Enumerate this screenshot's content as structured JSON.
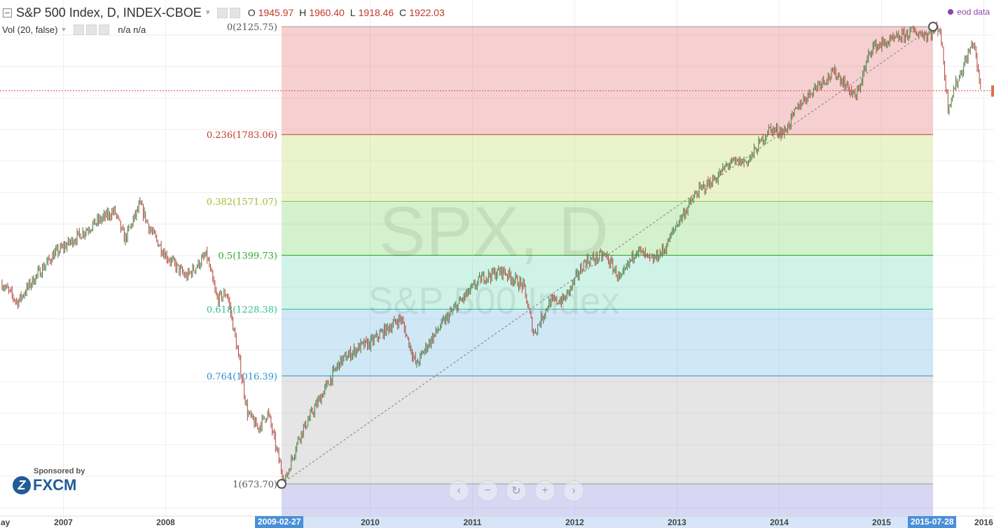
{
  "legend": {
    "title": "S&P 500 Index, D, INDEX-CBOE",
    "ohlc": [
      {
        "key": "O",
        "value": "1945.97"
      },
      {
        "key": "H",
        "value": "1960.40"
      },
      {
        "key": "L",
        "value": "1918.46"
      },
      {
        "key": "C",
        "value": "1922.03"
      }
    ],
    "volume_label": "Vol (20, false)",
    "volume_values": "n/a n/a"
  },
  "data_source": "eod data",
  "watermark": {
    "symbol": "SPX, D",
    "name": "S&P 500 Index"
  },
  "sponsor": {
    "caption": "Sponsored by",
    "brand": "FXCM"
  },
  "nav_buttons": [
    {
      "name": "scroll-left-button",
      "icon": "chevron-left-icon",
      "glyph": "‹"
    },
    {
      "name": "zoom-out-button",
      "icon": "minus-icon",
      "glyph": "−"
    },
    {
      "name": "reset-button",
      "icon": "reset-icon",
      "glyph": "↻"
    },
    {
      "name": "zoom-in-button",
      "icon": "plus-icon",
      "glyph": "+"
    },
    {
      "name": "scroll-right-button",
      "icon": "chevron-right-icon",
      "glyph": "›"
    }
  ],
  "time_axis": {
    "first_label": "ay",
    "years": [
      "2007",
      "2008",
      "2010",
      "2011",
      "2012",
      "2013",
      "2014",
      "2015",
      "2016"
    ],
    "range_start": "2009-02-27",
    "range_end": "2015-07-28"
  },
  "fibonacci": {
    "levels": [
      {
        "label": "0(2125.75)",
        "ratio": 0,
        "price": 2125.75,
        "line_color": "#9a9a9a",
        "text_color": "#555555",
        "fill": "rgba(226,110,110,0.32)"
      },
      {
        "label": "0.236(1783.06)",
        "ratio": 0.236,
        "price": 1783.06,
        "line_color": "#c0392b",
        "text_color": "#c0392b",
        "fill": "rgba(196,222,110,0.35)"
      },
      {
        "label": "0.382(1571.07)",
        "ratio": 0.382,
        "price": 1571.07,
        "line_color": "#8dc63f",
        "text_color": "#9bbf2a",
        "fill": "rgba(120,210,100,0.32)"
      },
      {
        "label": "0.5(1399.73)",
        "ratio": 0.5,
        "price": 1399.73,
        "line_color": "#2ea82e",
        "text_color": "#2ea82e",
        "fill": "rgba(100,214,180,0.30)"
      },
      {
        "label": "0.618(1228.38)",
        "ratio": 0.618,
        "price": 1228.38,
        "line_color": "#2fbf94",
        "text_color": "#2fbf94",
        "fill": "rgba(110,180,226,0.32)"
      },
      {
        "label": "0.764(1016.39)",
        "ratio": 0.764,
        "price": 1016.39,
        "line_color": "#2a8fd0",
        "text_color": "#2a8fd0",
        "fill": "rgba(180,180,180,0.35)"
      },
      {
        "label": "1(673.70)",
        "ratio": 1,
        "price": 673.7,
        "line_color": "#9a9a9a",
        "text_color": "#555555",
        "fill": "rgba(150,150,226,0.38)"
      }
    ]
  },
  "chart_data": {
    "type": "line",
    "title": "S&P 500 Index, D, INDEX-CBOE",
    "xlabel": "",
    "ylabel": "",
    "x": [
      2006.4,
      2006.55,
      2006.7,
      2006.9,
      2007.1,
      2007.3,
      2007.5,
      2007.6,
      2007.75,
      2007.85,
      2008.0,
      2008.2,
      2008.4,
      2008.5,
      2008.6,
      2008.7,
      2008.8,
      2008.9,
      2009.0,
      2009.16,
      2009.3,
      2009.5,
      2009.7,
      2009.9,
      2010.0,
      2010.1,
      2010.3,
      2010.45,
      2010.55,
      2010.7,
      2010.9,
      2011.1,
      2011.3,
      2011.5,
      2011.6,
      2011.75,
      2011.9,
      2012.1,
      2012.3,
      2012.45,
      2012.6,
      2012.75,
      2012.88,
      2013.0,
      2013.2,
      2013.4,
      2013.5,
      2013.7,
      2013.9,
      2014.05,
      2014.2,
      2014.4,
      2014.55,
      2014.75,
      2014.9,
      2015.1,
      2015.3,
      2015.45,
      2015.57,
      2015.65,
      2015.7,
      2015.8,
      2015.9,
      2015.97
    ],
    "values": [
      1310,
      1250,
      1320,
      1400,
      1450,
      1500,
      1540,
      1450,
      1560,
      1480,
      1400,
      1330,
      1400,
      1260,
      1280,
      1100,
      900,
      850,
      900,
      676,
      820,
      940,
      1060,
      1110,
      1120,
      1150,
      1200,
      1050,
      1110,
      1180,
      1260,
      1330,
      1350,
      1300,
      1150,
      1250,
      1260,
      1380,
      1400,
      1320,
      1420,
      1380,
      1420,
      1500,
      1600,
      1650,
      1690,
      1700,
      1800,
      1790,
      1880,
      1950,
      1980,
      1900,
      2060,
      2080,
      2110,
      2100,
      2125.75,
      1870,
      1920,
      2000,
      2080,
      1922.03
    ],
    "ylim": [
      600,
      2125.75
    ],
    "xlim": [
      2006.38,
      2016.1
    ],
    "x_ticks": [
      "2007",
      "2008",
      "2010",
      "2011",
      "2012",
      "2013",
      "2014",
      "2015",
      "2016"
    ],
    "fib_retracement": {
      "start_date": "2009-02-27",
      "start_price": 673.7,
      "end_date": "2015-07-28",
      "end_price": 2125.75
    },
    "current_price_line": 1922.03,
    "grid": true
  }
}
